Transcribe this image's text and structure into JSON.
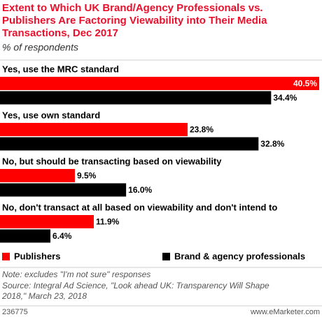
{
  "chart_data": {
    "type": "bar",
    "orientation": "horizontal",
    "title": [
      "Extent to Which UK Brand/Agency Professionals vs.",
      "Publishers Are Factoring Viewability into Their Media",
      "Transactions, Dec 2017"
    ],
    "subtitle": "% of respondents",
    "categories": [
      "Yes, use the MRC standard",
      "Yes, use own standard",
      "No, but should be transacting based on viewability",
      "No, don't transact at all based on viewability and don't intend to"
    ],
    "series": [
      {
        "name": "Publishers",
        "color": "#ff0000",
        "values": [
          40.5,
          23.8,
          9.5,
          11.9
        ],
        "value_labels": [
          "40.5%",
          "23.8%",
          "9.5%",
          "11.9%"
        ]
      },
      {
        "name": "Brand & agency professionals",
        "color": "#000000",
        "values": [
          34.4,
          32.8,
          16.0,
          6.4
        ],
        "value_labels": [
          "34.4%",
          "32.8%",
          "16.0%",
          "6.4%"
        ]
      }
    ],
    "notes": [
      "Note: excludes \"I'm not sure\" responses",
      "Source: Integral Ad Science, \"Look ahead UK: Transparency Will Shape",
      "2018,\" March 23, 2018"
    ],
    "chart_id": "236775",
    "website": "www.eMarketer.com"
  }
}
